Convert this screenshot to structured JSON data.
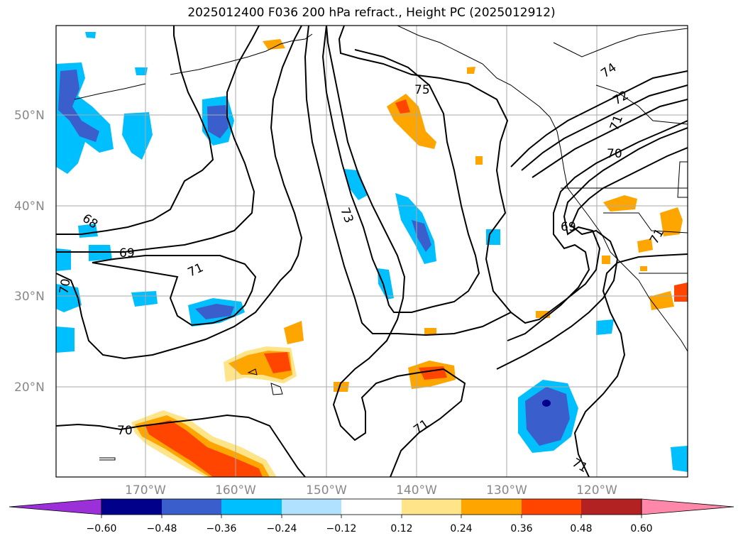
{
  "title": "2025012400 F036 200 hPa refract., Height PC (2025012912)",
  "map": {
    "lat_labels": [
      "50°N",
      "40°N",
      "30°N",
      "20°N"
    ],
    "lon_labels": [
      "170°W",
      "160°W",
      "150°W",
      "140°W",
      "130°W",
      "120°W"
    ],
    "grid": true
  },
  "contour_labels": [
    "75",
    "74",
    "73",
    "72",
    "71",
    "71",
    "71",
    "71",
    "71",
    "70",
    "70",
    "70",
    "69",
    "69",
    "68"
  ],
  "colorbar": {
    "ticks": [
      "−0.60",
      "−0.48",
      "−0.36",
      "−0.24",
      "−0.12",
      "0.12",
      "0.24",
      "0.36",
      "0.48",
      "0.60"
    ],
    "colors": [
      "#9b30d9",
      "#00008b",
      "#3a5fcd",
      "#00bfff",
      "#b0e2ff",
      "#ffffff",
      "#ffe48a",
      "#ffa500",
      "#ff4500",
      "#b22222",
      "#ff88aa"
    ]
  }
}
